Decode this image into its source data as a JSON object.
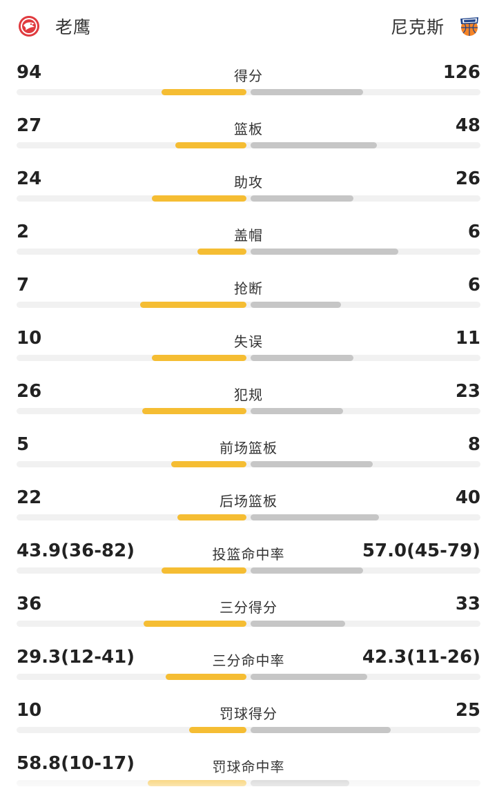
{
  "header": {
    "home_team": "老鹰",
    "away_team": "尼克斯",
    "home_logo_icon": "hawks-logo-icon",
    "away_logo_icon": "knicks-logo-icon"
  },
  "colors": {
    "home_bar": "#f5bd33",
    "away_bar": "#c6c6c6",
    "track": "#f1f1f1"
  },
  "stats": [
    {
      "label": "得分",
      "home": "94",
      "away": "126",
      "home_share": 0.43,
      "away_share": 0.57
    },
    {
      "label": "篮板",
      "home": "27",
      "away": "48",
      "home_share": 0.36,
      "away_share": 0.64
    },
    {
      "label": "助攻",
      "home": "24",
      "away": "26",
      "home_share": 0.48,
      "away_share": 0.52
    },
    {
      "label": "盖帽",
      "home": "2",
      "away": "6",
      "home_share": 0.25,
      "away_share": 0.75
    },
    {
      "label": "抢断",
      "home": "7",
      "away": "6",
      "home_share": 0.54,
      "away_share": 0.46
    },
    {
      "label": "失误",
      "home": "10",
      "away": "11",
      "home_share": 0.48,
      "away_share": 0.52
    },
    {
      "label": "犯规",
      "home": "26",
      "away": "23",
      "home_share": 0.53,
      "away_share": 0.47
    },
    {
      "label": "前场篮板",
      "home": "5",
      "away": "8",
      "home_share": 0.38,
      "away_share": 0.62
    },
    {
      "label": "后场篮板",
      "home": "22",
      "away": "40",
      "home_share": 0.35,
      "away_share": 0.65
    },
    {
      "label": "投篮命中率",
      "home": "43.9(36-82)",
      "away": "57.0(45-79)",
      "home_share": 0.43,
      "away_share": 0.57
    },
    {
      "label": "三分得分",
      "home": "36",
      "away": "33",
      "home_share": 0.52,
      "away_share": 0.48
    },
    {
      "label": "三分命中率",
      "home": "29.3(12-41)",
      "away": "42.3(11-26)",
      "home_share": 0.41,
      "away_share": 0.59
    },
    {
      "label": "罚球得分",
      "home": "10",
      "away": "25",
      "home_share": 0.29,
      "away_share": 0.71
    },
    {
      "label": "罚球命中率",
      "home": "58.8(10-17)",
      "away": "",
      "home_share": 0.5,
      "away_share": 0.5
    }
  ]
}
